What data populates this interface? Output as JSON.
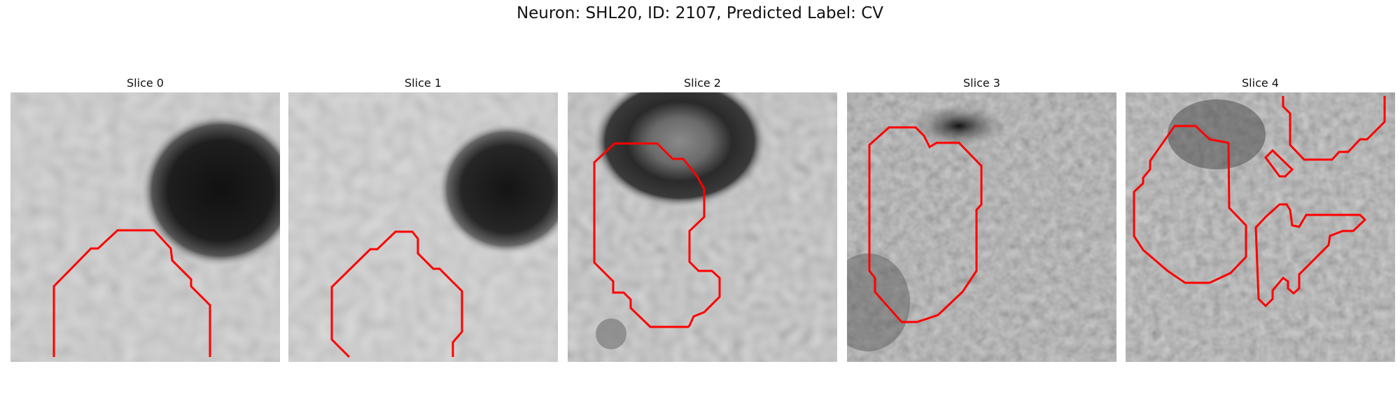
{
  "figure": {
    "title": "Neuron: SHL20, ID: 2107, Predicted Label: CV"
  },
  "contour_color": "#ff0000",
  "panels": [
    {
      "title": "Slice 0"
    },
    {
      "title": "Slice 1"
    },
    {
      "title": "Slice 2"
    },
    {
      "title": "Slice 3"
    },
    {
      "title": "Slice 4"
    }
  ]
}
